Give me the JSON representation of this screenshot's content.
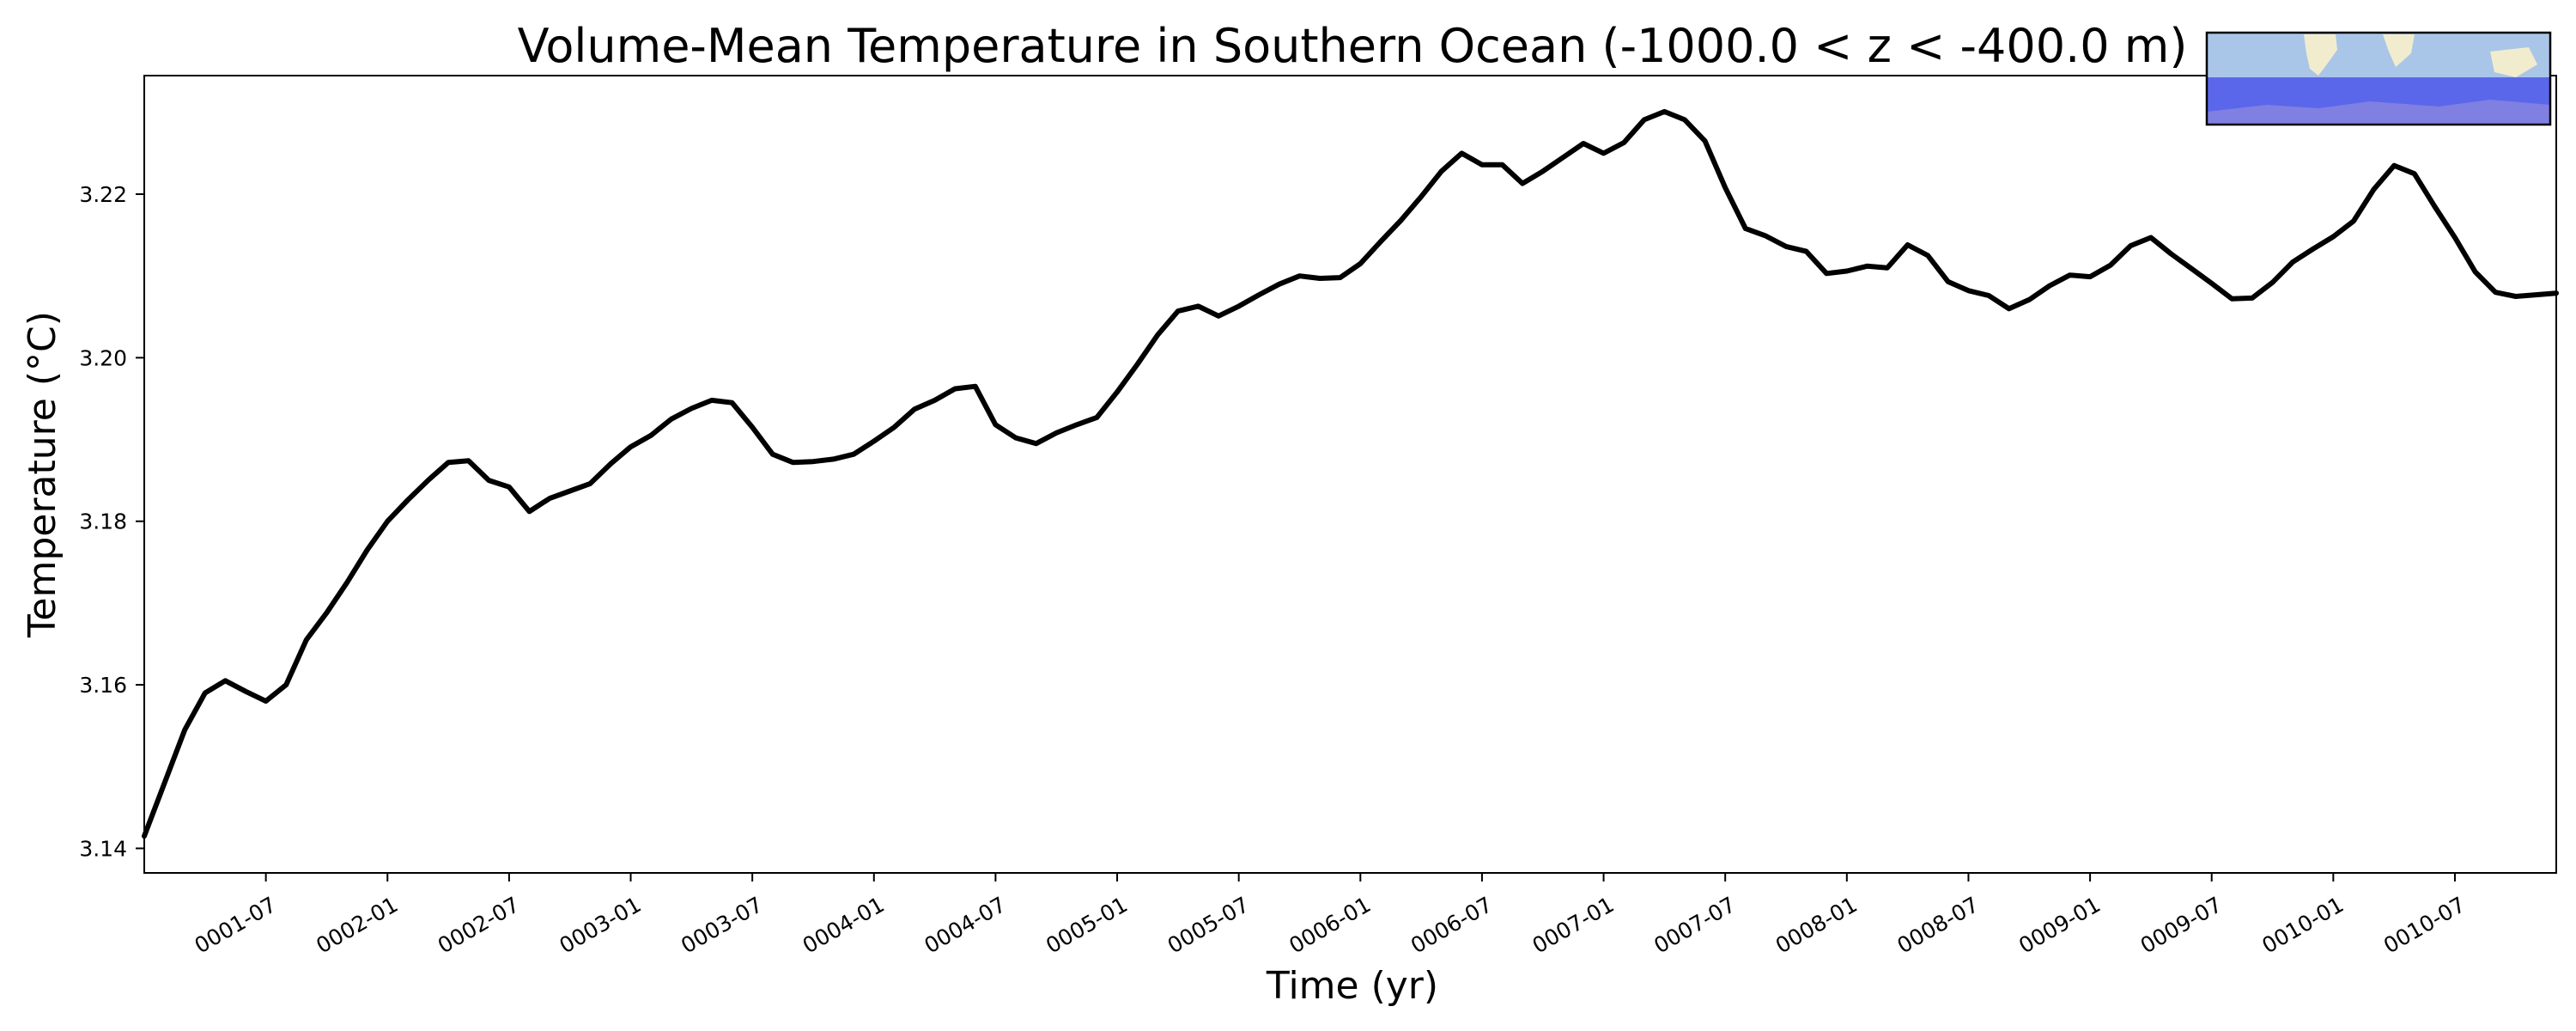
{
  "chart_data": {
    "type": "line",
    "title": "Volume-Mean Temperature in Southern Ocean (-1000.0 < z < -400.0 m)",
    "xlabel": "Time (yr)",
    "ylabel": "Temperature ($^\\circ$C)",
    "ylabel_display": "Temperature (°C)",
    "ylim": [
      3.137,
      3.2345
    ],
    "yticks": [
      3.14,
      3.16,
      3.18,
      3.2,
      3.22
    ],
    "ytick_labels": [
      "3.14",
      "3.16",
      "3.18",
      "3.20",
      "3.22"
    ],
    "xlim": [
      "0001-01",
      "0010-12"
    ],
    "xtick_labels": [
      "0001-07",
      "0002-01",
      "0002-07",
      "0003-01",
      "0003-07",
      "0004-01",
      "0004-07",
      "0005-01",
      "0005-07",
      "0006-01",
      "0006-07",
      "0007-01",
      "0007-07",
      "0008-01",
      "0008-07",
      "0009-01",
      "0009-07",
      "0010-01",
      "0010-07"
    ],
    "grid": false,
    "legend": "none",
    "line_color": "#000000",
    "inset_map": {
      "position": "top-right",
      "ocean_color": "#a9c6e8",
      "land_color": "#f2eccf",
      "region_color": "#5a67ea",
      "region": "Southern Ocean"
    },
    "series": [
      {
        "x": [
          "0001-01",
          "0001-02",
          "0001-03",
          "0001-04",
          "0001-05",
          "0001-06",
          "0001-07",
          "0001-08",
          "0001-09",
          "0001-10",
          "0001-11",
          "0001-12",
          "0002-01",
          "0002-02",
          "0002-03",
          "0002-04",
          "0002-05",
          "0002-06",
          "0002-07",
          "0002-08",
          "0002-09",
          "0002-10",
          "0002-11",
          "0002-12",
          "0003-01",
          "0003-02",
          "0003-03",
          "0003-04",
          "0003-05",
          "0003-06",
          "0003-07",
          "0003-08",
          "0003-09",
          "0003-10",
          "0003-11",
          "0003-12",
          "0004-01",
          "0004-02",
          "0004-03",
          "0004-04",
          "0004-05",
          "0004-06",
          "0004-07",
          "0004-08",
          "0004-09",
          "0004-10",
          "0004-11",
          "0004-12",
          "0005-01",
          "0005-02",
          "0005-03",
          "0005-04",
          "0005-05",
          "0005-06",
          "0005-07",
          "0005-08",
          "0005-09",
          "0005-10",
          "0005-11",
          "0005-12",
          "0006-01",
          "0006-02",
          "0006-03",
          "0006-04",
          "0006-05",
          "0006-06",
          "0006-07",
          "0006-08",
          "0006-09",
          "0006-10",
          "0006-11",
          "0006-12",
          "0007-01",
          "0007-02",
          "0007-03",
          "0007-04",
          "0007-05",
          "0007-06",
          "0007-07",
          "0007-08",
          "0007-09",
          "0007-10",
          "0007-11",
          "0007-12",
          "0008-01",
          "0008-02",
          "0008-03",
          "0008-04",
          "0008-05",
          "0008-06",
          "0008-07",
          "0008-08",
          "0008-09",
          "0008-10",
          "0008-11",
          "0008-12",
          "0009-01",
          "0009-02",
          "0009-03",
          "0009-04",
          "0009-05",
          "0009-06",
          "0009-07",
          "0009-08",
          "0009-09",
          "0009-10",
          "0009-11",
          "0009-12",
          "0010-01",
          "0010-02",
          "0010-03",
          "0010-04",
          "0010-05",
          "0010-06",
          "0010-07",
          "0010-08",
          "0010-09",
          "0010-10",
          "0010-11",
          "0010-12"
        ],
        "values": [
          3.1415,
          3.148,
          3.1545,
          3.159,
          3.1605,
          3.1592,
          3.158,
          3.16,
          3.1655,
          3.1688,
          3.1725,
          3.1765,
          3.18,
          3.1826,
          3.185,
          3.1872,
          3.1874,
          3.185,
          3.1842,
          3.1812,
          3.1828,
          3.1837,
          3.1846,
          3.187,
          3.1891,
          3.1905,
          3.1925,
          3.1938,
          3.1948,
          3.1945,
          3.1915,
          3.1882,
          3.1872,
          3.1873,
          3.1876,
          3.1882,
          3.1898,
          3.1915,
          3.1937,
          3.1948,
          3.1962,
          3.1965,
          3.1918,
          3.1902,
          3.1895,
          3.1908,
          3.1918,
          3.1927,
          3.1958,
          3.1992,
          3.2028,
          3.2057,
          3.2063,
          3.2051,
          3.2063,
          3.2077,
          3.209,
          3.21,
          3.2097,
          3.2098,
          3.2115,
          3.2142,
          3.2168,
          3.2197,
          3.2228,
          3.225,
          3.2236,
          3.2236,
          3.2213,
          3.2228,
          3.2245,
          3.2262,
          3.225,
          3.2263,
          3.2291,
          3.2301,
          3.2291,
          3.2265,
          3.2208,
          3.2158,
          3.2149,
          3.2136,
          3.213,
          3.2103,
          3.2106,
          3.2112,
          3.211,
          3.2138,
          3.2125,
          3.2093,
          3.2082,
          3.2076,
          3.206,
          3.2071,
          3.2088,
          3.2101,
          3.2099,
          3.2113,
          3.2137,
          3.2147,
          3.2127,
          3.2109,
          3.2091,
          3.2072,
          3.2073,
          3.2092,
          3.2117,
          3.2133,
          3.2148,
          3.2167,
          3.2206,
          3.2235,
          3.2225,
          3.2185,
          3.2147,
          3.2105,
          3.208,
          3.2075,
          3.2077,
          3.2079
        ]
      }
    ]
  }
}
